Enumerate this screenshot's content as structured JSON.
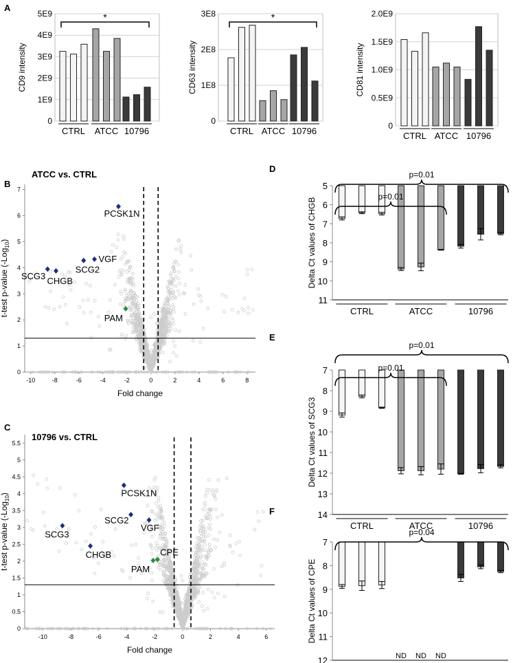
{
  "panel_labels": {
    "A": "A",
    "B": "B",
    "C": "C",
    "D": "D",
    "E": "E",
    "F": "F"
  },
  "colors": {
    "ctrl": "#f4f4f4",
    "atcc": "#a6a6a6",
    "k10796": "#3a3a3a",
    "volcano_dot": "#cccccc",
    "dot_blue": "#1f2d7a",
    "dot_green": "#2e8b3a"
  },
  "chart_data": [
    {
      "id": "A1",
      "type": "bar",
      "ylabel": "CD9 intensity",
      "yticks": [
        "0",
        "1E9",
        "2E9",
        "3E9",
        "4E9",
        "5E9"
      ],
      "ylim": [
        0,
        5000000000
      ],
      "groups": [
        "CTRL",
        "ATCC",
        "10796"
      ],
      "values": [
        [
          3250000000,
          3120000000,
          3580000000
        ],
        [
          4300000000,
          3250000000,
          3850000000
        ],
        [
          1120000000,
          1230000000,
          1580000000
        ]
      ],
      "significance": "*"
    },
    {
      "id": "A2",
      "type": "bar",
      "ylabel": "CD63 intensity",
      "yticks": [
        "0",
        "1E8",
        "2E8",
        "3E8"
      ],
      "ylim": [
        0,
        300000000
      ],
      "groups": [
        "CTRL",
        "ATCC",
        "10796"
      ],
      "values": [
        [
          177000000,
          262000000,
          268000000
        ],
        [
          57000000,
          85000000,
          60000000
        ],
        [
          185000000,
          206000000,
          112000000
        ]
      ],
      "significance": "*"
    },
    {
      "id": "A3",
      "type": "bar",
      "ylabel": "CD81 intensity",
      "yticks": [
        "0",
        "0.5E9",
        "1.0E9",
        "1.5E9",
        "2.0E9"
      ],
      "ylim": [
        0,
        2000000000
      ],
      "groups": [
        "CTRL",
        "ATCC",
        "10796"
      ],
      "values": [
        [
          1540000000,
          1330000000,
          1660000000
        ],
        [
          1050000000,
          1120000000,
          1050000000
        ],
        [
          830000000,
          1770000000,
          1350000000
        ]
      ]
    },
    {
      "id": "B",
      "type": "scatter",
      "title": "ATCC vs. CTRL",
      "xlabel": "Fold change",
      "ylabel": "t-test p-value (-Log",
      "ylabel_sub": "10",
      "ylabel_end": ")",
      "xticks": [
        "-10",
        "-8",
        "-6",
        "-4",
        "-2",
        "0",
        "2",
        "4",
        "6",
        "8"
      ],
      "yticks": [
        "0",
        "1",
        "2",
        "3",
        "4",
        "5",
        "6",
        "7"
      ],
      "xlim": [
        -10.5,
        8.7
      ],
      "ylim": [
        0,
        7.2
      ],
      "threshold_y": 1.3,
      "fold_lines": [
        -0.6,
        0.6
      ],
      "points": [
        {
          "label": "PCSK1N",
          "x": -2.7,
          "y": 6.35,
          "color": "blue"
        },
        {
          "label": "VGF",
          "x": -4.7,
          "y": 4.33,
          "color": "blue"
        },
        {
          "label": "SCG2",
          "x": -5.6,
          "y": 4.28,
          "color": "blue"
        },
        {
          "label": "SCG3",
          "x": -8.6,
          "y": 3.95,
          "color": "blue"
        },
        {
          "label": "CHGB",
          "x": -7.9,
          "y": 3.88,
          "color": "blue"
        },
        {
          "label": "PAM",
          "x": -2.1,
          "y": 2.43,
          "color": "green"
        }
      ]
    },
    {
      "id": "C",
      "type": "scatter",
      "title": "10796 vs. CTRL",
      "xlabel": "Fold change",
      "ylabel": "t-test p-value (-Log",
      "ylabel_sub": "10",
      "ylabel_end": ")",
      "xticks": [
        "-10",
        "-8",
        "-6",
        "-4",
        "-2",
        "0",
        "2",
        "4",
        "6"
      ],
      "yticks": [
        "0",
        "0.5",
        "1",
        "1.5",
        "2",
        "2.5",
        "3",
        "3.5",
        "4",
        "4.5",
        "5",
        "5.5"
      ],
      "xlim": [
        -11.3,
        6.6
      ],
      "ylim": [
        0,
        5.75
      ],
      "threshold_y": 1.3,
      "fold_lines": [
        -0.6,
        0.6
      ],
      "points": [
        {
          "label": "PCSK1N",
          "x": -4.2,
          "y": 4.25,
          "color": "blue"
        },
        {
          "label": "SCG2",
          "x": -3.7,
          "y": 3.38,
          "color": "blue"
        },
        {
          "label": "VGF",
          "x": -2.4,
          "y": 3.22,
          "color": "blue"
        },
        {
          "label": "SCG3",
          "x": -8.6,
          "y": 3.05,
          "color": "blue"
        },
        {
          "label": "CHGB",
          "x": -6.6,
          "y": 2.45,
          "color": "blue"
        },
        {
          "label": "CPE",
          "x": -1.8,
          "y": 2.05,
          "color": "green"
        },
        {
          "label": "PAM",
          "x": -2.1,
          "y": 2.02,
          "color": "green"
        }
      ]
    },
    {
      "id": "D",
      "type": "bar",
      "ylabel": "Delta Ct values of CHGB",
      "inverted": true,
      "yticks": [
        "5",
        "6",
        "7",
        "8",
        "9",
        "10",
        "11"
      ],
      "ylim": [
        5,
        11
      ],
      "groups": [
        "CTRL",
        "ATCC",
        "10796"
      ],
      "values": [
        [
          6.72,
          6.42,
          6.47
        ],
        [
          9.38,
          9.27,
          8.37
        ],
        [
          8.18,
          7.55,
          7.52
        ]
      ],
      "errors": [
        [
          0.08,
          0.05,
          0.07
        ],
        [
          0.08,
          0.2,
          0.02
        ],
        [
          0.1,
          0.3,
          0.06
        ]
      ],
      "brackets": [
        "p=0.01",
        "p=0.01"
      ]
    },
    {
      "id": "E",
      "type": "bar",
      "ylabel": "Delta Ct values of SCG3",
      "inverted": true,
      "yticks": [
        "7",
        "8",
        "9",
        "10",
        "11",
        "12",
        "13",
        "14"
      ],
      "ylim": [
        7,
        14
      ],
      "groups": [
        "CTRL",
        "ATCC",
        "10796"
      ],
      "values": [
        [
          9.18,
          8.28,
          8.83
        ],
        [
          11.88,
          11.88,
          11.8
        ],
        [
          12.03,
          11.78,
          11.67
        ]
      ],
      "errors": [
        [
          0.1,
          0.07,
          0.03
        ],
        [
          0.15,
          0.2,
          0.25
        ],
        [
          0.02,
          0.2,
          0.07
        ]
      ],
      "brackets": [
        "p=0.01",
        "p=0.01"
      ]
    },
    {
      "id": "F",
      "type": "bar",
      "ylabel": "Delta Ct values of CPE",
      "inverted": true,
      "yticks": [
        "7",
        "8",
        "9",
        "10",
        "11",
        "12"
      ],
      "ylim": [
        7,
        12
      ],
      "groups": [
        "CTRL",
        "ATCC",
        "10796"
      ],
      "values": [
        [
          8.88,
          8.85,
          8.82
        ],
        [
          null,
          null,
          null
        ],
        [
          8.52,
          8.05,
          8.25
        ]
      ],
      "errors": [
        [
          0.08,
          0.2,
          0.15
        ],
        [
          0,
          0,
          0
        ],
        [
          0.15,
          0.08,
          0.05
        ]
      ],
      "nd_label": "ND",
      "brackets": [
        "p=0.04"
      ]
    }
  ]
}
